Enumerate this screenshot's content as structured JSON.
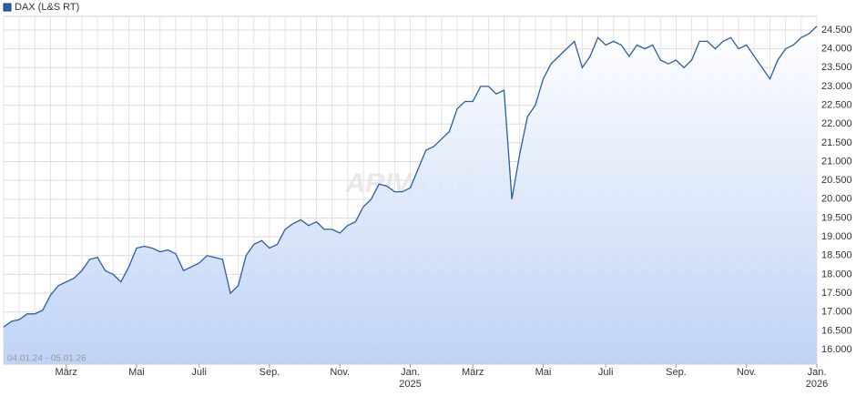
{
  "chart_data": {
    "type": "line",
    "series": [
      {
        "name": "DAX (L&S RT)",
        "color": "#2a5caa",
        "values": [
          16600,
          16750,
          16800,
          16950,
          16950,
          17050,
          17450,
          17700,
          17800,
          17900,
          18100,
          18400,
          18450,
          18100,
          18000,
          17800,
          18200,
          18700,
          18750,
          18700,
          18600,
          18650,
          18550,
          18100,
          18200,
          18300,
          18500,
          18450,
          18400,
          17500,
          17700,
          18500,
          18800,
          18900,
          18700,
          18800,
          19200,
          19350,
          19450,
          19300,
          19400,
          19200,
          19200,
          19100,
          19300,
          19400,
          19800,
          20000,
          20400,
          20350,
          20200,
          20200,
          20300,
          20800,
          21300,
          21400,
          21600,
          21800,
          22400,
          22600,
          22600,
          23000,
          23000,
          22800,
          22900,
          20000,
          21200,
          22200,
          22500,
          23200,
          23600,
          23800,
          24000,
          24200,
          23500,
          23800,
          24300,
          24100,
          24200,
          24100,
          23800,
          24100,
          24000,
          24100,
          23700,
          23600,
          23700,
          23500,
          23700,
          24200,
          24200,
          24000,
          24200,
          24300,
          24000,
          24100,
          23800,
          23500,
          23200,
          23700,
          24000,
          24100,
          24300,
          24400,
          24600
        ]
      }
    ],
    "categories": [
      null,
      null,
      null,
      null,
      null,
      null,
      null,
      null,
      "März",
      null,
      null,
      null,
      null,
      null,
      null,
      null,
      null,
      "Mai",
      null,
      null,
      null,
      null,
      null,
      null,
      null,
      "Juli",
      null,
      null,
      null,
      null,
      null,
      null,
      null,
      null,
      "Sep.",
      null,
      null,
      null,
      null,
      null,
      null,
      null,
      null,
      "Nov.",
      null,
      null,
      null,
      null,
      null,
      null,
      null,
      null,
      "Jan.\n2025",
      null,
      null,
      null,
      null,
      null,
      null,
      null,
      "März",
      null,
      null,
      null,
      null,
      null,
      null,
      null,
      null,
      "Mai",
      null,
      null,
      null,
      null,
      null,
      null,
      null,
      "Juli",
      null,
      null,
      null,
      null,
      null,
      null,
      null,
      null,
      "Sep.",
      null,
      null,
      null,
      null,
      null,
      null,
      null,
      null,
      "Nov.",
      null,
      null,
      null,
      null,
      null,
      null,
      null,
      null,
      "Jan.\n2026"
    ],
    "ylim": [
      15613,
      24863
    ],
    "yticks": [
      {
        "value": 16000,
        "label": "16.000"
      },
      {
        "value": 16500,
        "label": "16.500"
      },
      {
        "value": 17000,
        "label": "17.000"
      },
      {
        "value": 17500,
        "label": "17.500"
      },
      {
        "value": 18000,
        "label": "18.000"
      },
      {
        "value": 18500,
        "label": "18.500"
      },
      {
        "value": 19000,
        "label": "19.000"
      },
      {
        "value": 19500,
        "label": "19.500"
      },
      {
        "value": 20000,
        "label": "20.000"
      },
      {
        "value": 20500,
        "label": "20.500"
      },
      {
        "value": 21000,
        "label": "21.000"
      },
      {
        "value": 21500,
        "label": "21.500"
      },
      {
        "value": 22000,
        "label": "22.000"
      },
      {
        "value": 22500,
        "label": "22.500"
      },
      {
        "value": 23000,
        "label": "23.000"
      },
      {
        "value": 23500,
        "label": "23.500"
      },
      {
        "value": 24000,
        "label": "24.000"
      },
      {
        "value": 24500,
        "label": "24.500"
      }
    ],
    "grid": true,
    "range_label": "04.01.24 - 05.01.26",
    "watermark": "ARIVA.DE"
  }
}
